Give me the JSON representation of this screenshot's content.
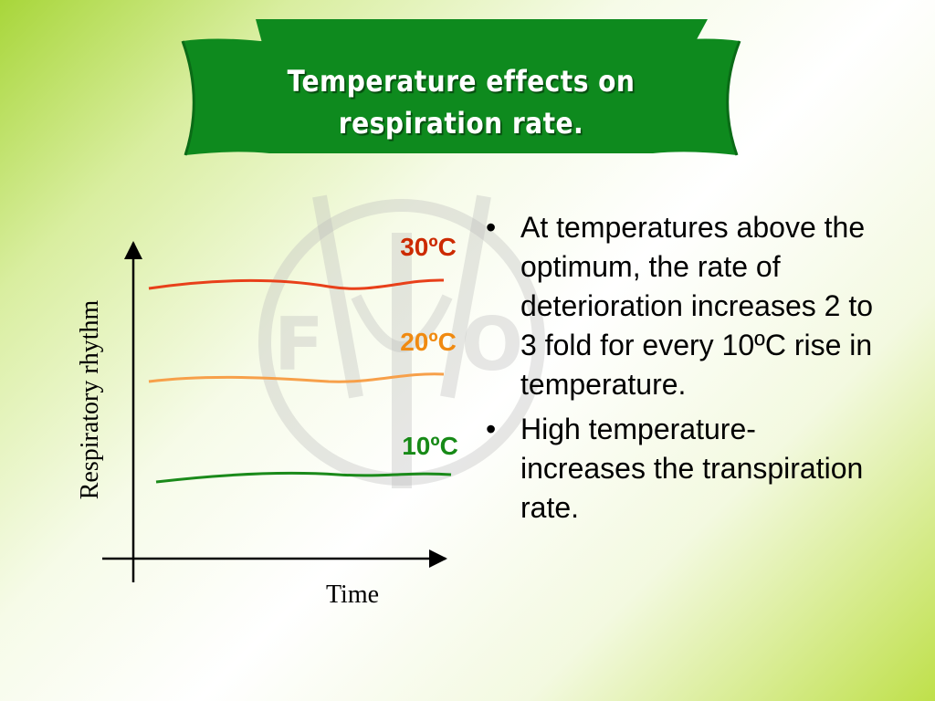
{
  "title": {
    "line1": "Temperature effects on",
    "line2": "respiration rate."
  },
  "colors": {
    "banner": "#0e8a1e",
    "banner_dark": "#0a6b16",
    "curve_30": "#e8401a",
    "curve_20": "#f7a04a",
    "curve_10": "#1a8a1a",
    "label_30": "#cc2a00",
    "label_20": "#f08a10",
    "label_10": "#178a17"
  },
  "diagram": {
    "y_axis_label": "Respiratory rhythm",
    "x_axis_label": "Time",
    "curves": [
      {
        "label": "30ºC"
      },
      {
        "label": "20ºC"
      },
      {
        "label": "10ºC"
      }
    ]
  },
  "bullets": [
    "At temperatures above the optimum, the rate of deterioration increases 2 to 3 fold for every 10ºC rise in temperature.",
    "High temperature- increases the transpiration rate."
  ],
  "watermark_icon": "fao-logo-icon"
}
